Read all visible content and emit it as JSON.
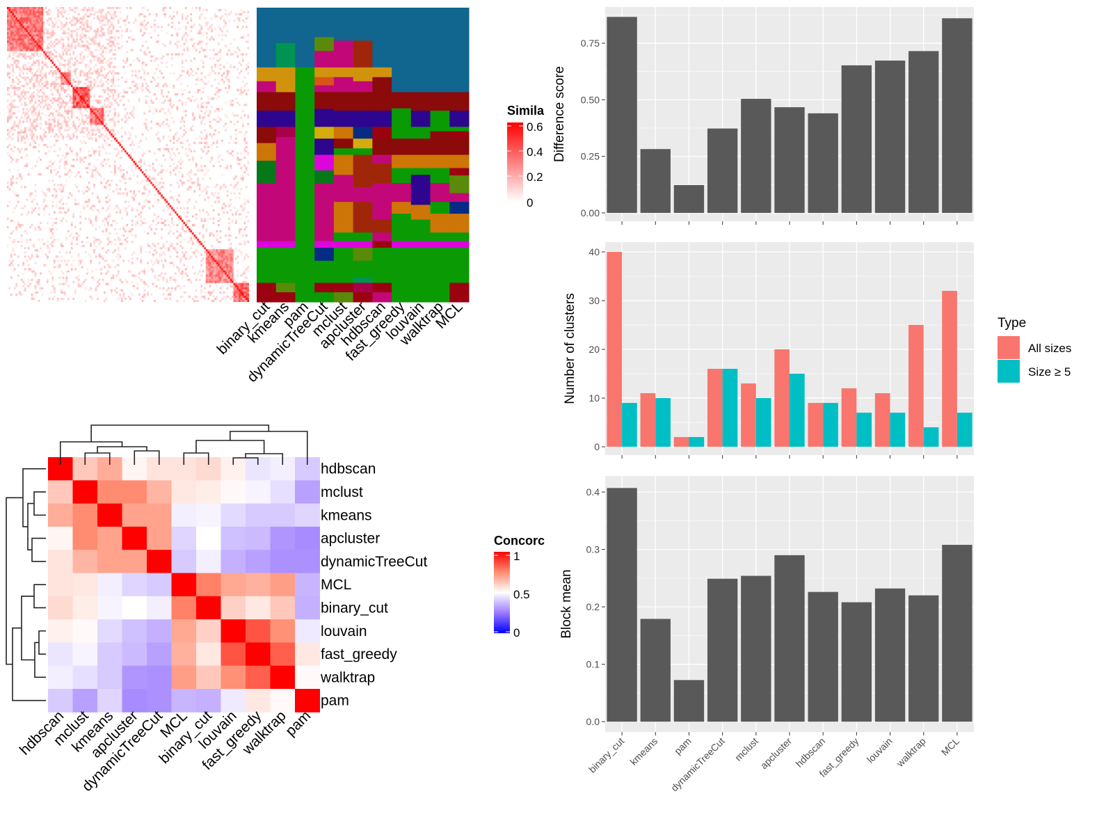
{
  "methods_order_bars": [
    "binary_cut",
    "kmeans",
    "pam",
    "dynamicTreeCut",
    "mclust",
    "apcluster",
    "hdbscan",
    "fast_greedy",
    "louvain",
    "walktrap",
    "MCL"
  ],
  "chart_data": [
    {
      "type": "heatmap",
      "name_note": "similarity matrix",
      "legend_title": "Simila",
      "legend_ticks": [
        "0.6",
        "0.4",
        "0.2",
        "0"
      ],
      "scale": {
        "min": 0,
        "max": 0.6,
        "low_color": "#FFFFFF",
        "high_color": "#FF0000"
      },
      "blocks": [
        [
          0,
          0.15,
          0.45
        ],
        [
          0.22,
          0.26,
          0.4
        ],
        [
          0.27,
          0.34,
          0.55
        ],
        [
          0.34,
          0.4,
          0.45
        ],
        [
          0.82,
          0.93,
          0.4
        ],
        [
          0.93,
          1,
          0.5
        ]
      ]
    },
    {
      "type": "heatmap",
      "name_note": "cluster membership",
      "columns": [
        "binary_cut",
        "kmeans",
        "pam",
        "dynamicTreeCut",
        "mclust",
        "apcluster",
        "hdbscan",
        "fast_greedy",
        "louvain",
        "walktrap",
        "MCL"
      ],
      "colors": {
        "blue": "#10668F",
        "green": "#0A9A04",
        "darkred": "#8B0A0A",
        "indigo": "#2E058F",
        "magenta": "#C20878",
        "orange": "#CD7506",
        "gold": "#D2930C",
        "brightmag": "#DC05DC",
        "olive": "#5A8A0A",
        "red": "#9A0210",
        "teal": "#009352",
        "rust": "#A0260A",
        "navy": "#052B85",
        "yellow": "#D4AC0D",
        "darkgreen": "#06781A",
        "orangered": "#D9541A",
        "wine": "#A8004A"
      },
      "segments": [
        [
          [
            0.203,
            "blue"
          ],
          [
            0.25,
            "gold"
          ],
          [
            0.287,
            "magenta"
          ],
          [
            0.35,
            "darkred"
          ],
          [
            0.405,
            "indigo"
          ],
          [
            0.46,
            "darkred"
          ],
          [
            0.52,
            "orange"
          ],
          [
            0.596,
            "darkgreen"
          ],
          [
            0.793,
            "magenta"
          ],
          [
            0.816,
            "brightmag"
          ],
          [
            0.935,
            "green"
          ],
          [
            1,
            "red"
          ]
        ],
        [
          [
            0.12,
            "blue"
          ],
          [
            0.203,
            "teal"
          ],
          [
            0.287,
            "gold"
          ],
          [
            0.35,
            "darkred"
          ],
          [
            0.405,
            "indigo"
          ],
          [
            0.44,
            "wine"
          ],
          [
            0.793,
            "magenta"
          ],
          [
            0.816,
            "brightmag"
          ],
          [
            0.935,
            "green"
          ],
          [
            0.967,
            "olive"
          ],
          [
            1,
            "red"
          ]
        ],
        [
          [
            0.203,
            "blue"
          ],
          [
            1,
            "green"
          ]
        ],
        [
          [
            0.1,
            "blue"
          ],
          [
            0.147,
            "olive"
          ],
          [
            0.203,
            "magenta"
          ],
          [
            0.236,
            "gold"
          ],
          [
            0.264,
            "orangered"
          ],
          [
            0.287,
            "magenta"
          ],
          [
            0.344,
            "darkred"
          ],
          [
            0.405,
            "indigo"
          ],
          [
            0.445,
            "yellow"
          ],
          [
            0.5,
            "indigo"
          ],
          [
            0.553,
            "brightmag"
          ],
          [
            0.596,
            "darkgreen"
          ],
          [
            0.793,
            "magenta"
          ],
          [
            0.816,
            "brightmag"
          ],
          [
            0.86,
            "navy"
          ],
          [
            0.935,
            "green"
          ],
          [
            0.967,
            "red"
          ],
          [
            1,
            "green"
          ]
        ],
        [
          [
            0.112,
            "blue"
          ],
          [
            0.203,
            "magenta"
          ],
          [
            0.236,
            "gold"
          ],
          [
            0.287,
            "magenta"
          ],
          [
            0.35,
            "darkred"
          ],
          [
            0.405,
            "indigo"
          ],
          [
            0.445,
            "orange"
          ],
          [
            0.478,
            "darkred"
          ],
          [
            0.5,
            "green"
          ],
          [
            0.568,
            "orange"
          ],
          [
            0.66,
            "magenta"
          ],
          [
            0.764,
            "orange"
          ],
          [
            0.793,
            "green"
          ],
          [
            0.816,
            "brightmag"
          ],
          [
            0.935,
            "green"
          ],
          [
            0.967,
            "red"
          ],
          [
            1,
            "olive"
          ]
        ],
        [
          [
            0.112,
            "blue"
          ],
          [
            0.203,
            "rust"
          ],
          [
            0.25,
            "gold"
          ],
          [
            0.287,
            "magenta"
          ],
          [
            0.35,
            "darkred"
          ],
          [
            0.405,
            "indigo"
          ],
          [
            0.445,
            "navy"
          ],
          [
            0.478,
            "yellow"
          ],
          [
            0.5,
            "green"
          ],
          [
            0.61,
            "rust"
          ],
          [
            0.66,
            "magenta"
          ],
          [
            0.764,
            "rust"
          ],
          [
            0.793,
            "green"
          ],
          [
            0.816,
            "brightmag"
          ],
          [
            0.86,
            "olive"
          ],
          [
            0.917,
            "green"
          ],
          [
            0.935,
            "teal"
          ],
          [
            0.967,
            "wine"
          ],
          [
            1,
            "red"
          ]
        ],
        [
          [
            0.203,
            "blue"
          ],
          [
            0.236,
            "gold"
          ],
          [
            0.35,
            "darkred"
          ],
          [
            0.405,
            "indigo"
          ],
          [
            0.445,
            "red"
          ],
          [
            0.5,
            "darkred"
          ],
          [
            0.53,
            "magenta"
          ],
          [
            0.596,
            "rust"
          ],
          [
            0.72,
            "magenta"
          ],
          [
            0.764,
            "rust"
          ],
          [
            0.793,
            "magenta"
          ],
          [
            0.816,
            "red"
          ],
          [
            0.935,
            "green"
          ],
          [
            0.967,
            "red"
          ],
          [
            1,
            "magenta"
          ]
        ],
        [
          [
            0.287,
            "blue"
          ],
          [
            0.342,
            "darkred"
          ],
          [
            0.445,
            "green"
          ],
          [
            0.5,
            "darkred"
          ],
          [
            0.545,
            "orange"
          ],
          [
            0.596,
            "green"
          ],
          [
            0.66,
            "magenta"
          ],
          [
            0.7,
            "orange"
          ],
          [
            0.793,
            "green"
          ],
          [
            0.816,
            "brightmag"
          ],
          [
            1,
            "green"
          ]
        ],
        [
          [
            0.287,
            "blue"
          ],
          [
            0.35,
            "darkred"
          ],
          [
            0.405,
            "indigo"
          ],
          [
            0.445,
            "green"
          ],
          [
            0.5,
            "darkred"
          ],
          [
            0.545,
            "orange"
          ],
          [
            0.568,
            "green"
          ],
          [
            0.67,
            "indigo"
          ],
          [
            0.72,
            "orange"
          ],
          [
            0.793,
            "green"
          ],
          [
            0.816,
            "brightmag"
          ],
          [
            1,
            "green"
          ]
        ],
        [
          [
            0.287,
            "blue"
          ],
          [
            0.35,
            "darkred"
          ],
          [
            0.42,
            "green"
          ],
          [
            0.5,
            "darkred"
          ],
          [
            0.545,
            "orange"
          ],
          [
            0.596,
            "green"
          ],
          [
            0.66,
            "magenta"
          ],
          [
            0.7,
            "green"
          ],
          [
            0.764,
            "orange"
          ],
          [
            0.793,
            "green"
          ],
          [
            0.816,
            "brightmag"
          ],
          [
            1,
            "green"
          ]
        ],
        [
          [
            0.287,
            "blue"
          ],
          [
            0.35,
            "darkred"
          ],
          [
            0.405,
            "indigo"
          ],
          [
            0.42,
            "green"
          ],
          [
            0.445,
            "red"
          ],
          [
            0.5,
            "darkred"
          ],
          [
            0.545,
            "orange"
          ],
          [
            0.57,
            "red"
          ],
          [
            0.63,
            "olive"
          ],
          [
            0.66,
            "magenta"
          ],
          [
            0.7,
            "navy"
          ],
          [
            0.764,
            "orange"
          ],
          [
            0.793,
            "green"
          ],
          [
            0.816,
            "brightmag"
          ],
          [
            0.935,
            "green"
          ],
          [
            1,
            "red"
          ]
        ]
      ]
    },
    {
      "type": "heatmap",
      "name_note": "concordance",
      "legend_title": "Concorc",
      "legend_ticks": [
        "1",
        "0.5",
        "0"
      ],
      "scale": {
        "min": 0,
        "mid": 0.5,
        "max": 1,
        "low_color": "#0000FF",
        "mid_color": "#FFFFFF",
        "high_color": "#FF0000"
      },
      "labels": [
        "hdbscan",
        "mclust",
        "kmeans",
        "apcluster",
        "dynamicTreeCut",
        "MCL",
        "binary_cut",
        "louvain",
        "fast_greedy",
        "walktrap",
        "pam"
      ],
      "matrix": [
        [
          1,
          0.62,
          0.68,
          0.52,
          0.56,
          0.56,
          0.58,
          0.53,
          0.45,
          0.47,
          0.4
        ],
        [
          0.62,
          1,
          0.75,
          0.75,
          0.66,
          0.55,
          0.54,
          0.51,
          0.48,
          0.44,
          0.32
        ],
        [
          0.68,
          0.75,
          1,
          0.7,
          0.7,
          0.47,
          0.48,
          0.43,
          0.4,
          0.4,
          0.42
        ],
        [
          0.52,
          0.75,
          0.7,
          1,
          0.7,
          0.42,
          0.5,
          0.38,
          0.37,
          0.3,
          0.28
        ],
        [
          0.56,
          0.66,
          0.7,
          0.7,
          1,
          0.4,
          0.47,
          0.35,
          0.32,
          0.29,
          0.29
        ],
        [
          0.56,
          0.55,
          0.47,
          0.42,
          0.4,
          1,
          0.77,
          0.69,
          0.67,
          0.71,
          0.36
        ],
        [
          0.58,
          0.54,
          0.48,
          0.5,
          0.47,
          0.77,
          1,
          0.6,
          0.55,
          0.62,
          0.35
        ],
        [
          0.53,
          0.51,
          0.43,
          0.38,
          0.35,
          0.69,
          0.6,
          1,
          0.85,
          0.74,
          0.46
        ],
        [
          0.45,
          0.48,
          0.4,
          0.37,
          0.32,
          0.67,
          0.55,
          0.85,
          1,
          0.83,
          0.55
        ],
        [
          0.47,
          0.44,
          0.4,
          0.3,
          0.29,
          0.71,
          0.62,
          0.74,
          0.83,
          1,
          0.51
        ],
        [
          0.4,
          0.32,
          0.42,
          0.28,
          0.29,
          0.36,
          0.35,
          0.46,
          0.55,
          0.51,
          1
        ]
      ]
    },
    {
      "type": "bar",
      "ylabel": "Difference score",
      "categories": [
        "binary_cut",
        "kmeans",
        "pam",
        "dynamicTreeCut",
        "mclust",
        "apcluster",
        "hdbscan",
        "fast_greedy",
        "louvain",
        "walktrap",
        "MCL"
      ],
      "values": [
        0.866,
        0.282,
        0.123,
        0.373,
        0.504,
        0.467,
        0.44,
        0.652,
        0.673,
        0.715,
        0.86
      ],
      "yticks": [
        "0.00",
        "0.25",
        "0.50",
        "0.75"
      ],
      "ylim": [
        -0.037,
        0.91
      ],
      "bar_color": "#595959",
      "panel_color": "#EBEBEB",
      "grid": true
    },
    {
      "type": "bar",
      "ylabel": "Number of clusters",
      "categories": [
        "binary_cut",
        "kmeans",
        "pam",
        "dynamicTreeCut",
        "mclust",
        "apcluster",
        "hdbscan",
        "fast_greedy",
        "louvain",
        "walktrap",
        "MCL"
      ],
      "series": [
        {
          "name": "All sizes",
          "color": "#F8766D",
          "values": [
            40,
            11,
            2,
            16,
            13,
            20,
            9,
            12,
            11,
            25,
            32
          ]
        },
        {
          "name": "Size ≥ 5",
          "color": "#00BFC4",
          "values": [
            9,
            10,
            2,
            16,
            10,
            15,
            9,
            7,
            7,
            4,
            7
          ]
        }
      ],
      "legend_title": "Type",
      "legend_position": "right",
      "yticks": [
        "0",
        "10",
        "20",
        "30",
        "40"
      ],
      "ylim": [
        -1.7,
        42
      ],
      "panel_color": "#EBEBEB",
      "grid": true
    },
    {
      "type": "bar",
      "ylabel": "Block mean",
      "categories": [
        "binary_cut",
        "kmeans",
        "pam",
        "dynamicTreeCut",
        "mclust",
        "apcluster",
        "hdbscan",
        "fast_greedy",
        "louvain",
        "walktrap",
        "MCL"
      ],
      "values": [
        0.407,
        0.179,
        0.0725,
        0.249,
        0.254,
        0.29,
        0.226,
        0.208,
        0.232,
        0.22,
        0.308
      ],
      "yticks": [
        "0.0",
        "0.1",
        "0.2",
        "0.3",
        "0.4"
      ],
      "ylim": [
        -0.018,
        0.428
      ],
      "bar_color": "#595959",
      "panel_color": "#EBEBEB",
      "grid": true
    }
  ]
}
